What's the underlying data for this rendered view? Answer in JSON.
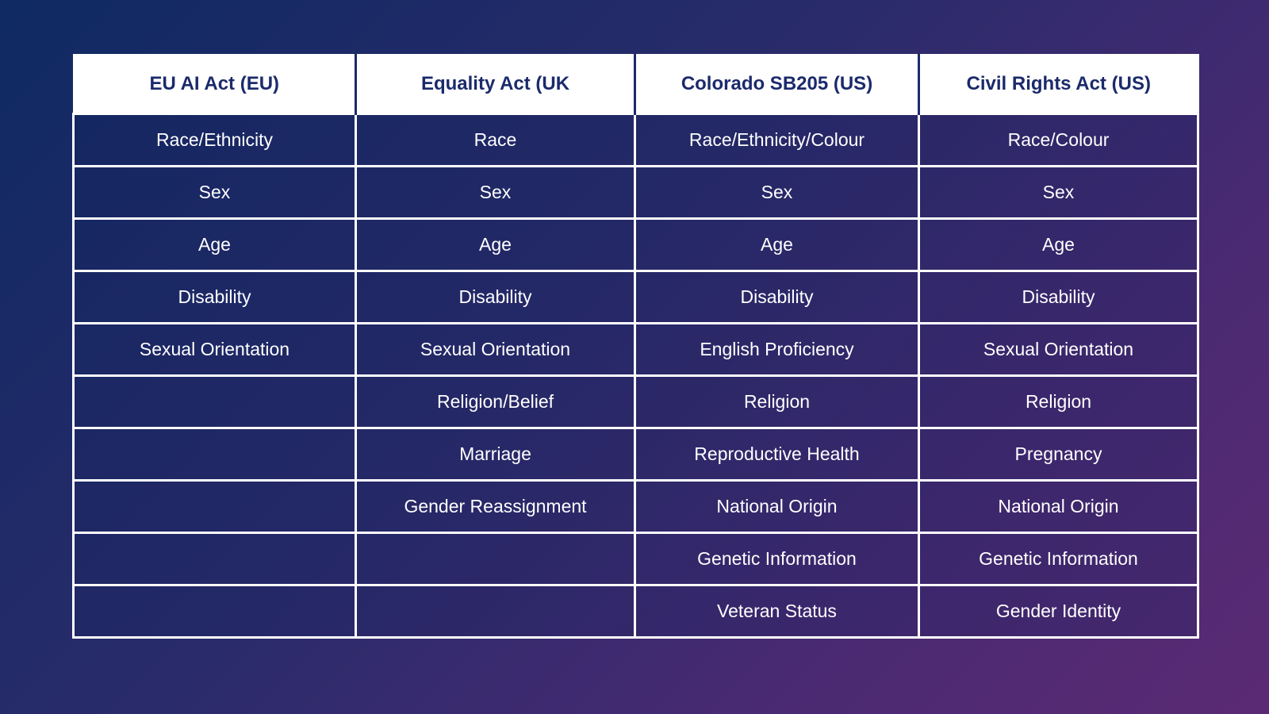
{
  "table": {
    "headers": [
      "EU AI Act (EU)",
      "Equality Act (UK",
      "Colorado SB205 (US)",
      "Civil Rights Act (US)"
    ],
    "rows": [
      [
        "Race/Ethnicity",
        "Race",
        "Race/Ethnicity/Colour",
        "Race/Colour"
      ],
      [
        "Sex",
        "Sex",
        "Sex",
        "Sex"
      ],
      [
        "Age",
        "Age",
        "Age",
        "Age"
      ],
      [
        "Disability",
        "Disability",
        "Disability",
        "Disability"
      ],
      [
        "Sexual Orientation",
        "Sexual Orientation",
        "English Proficiency",
        "Sexual Orientation"
      ],
      [
        "",
        "Religion/Belief",
        "Religion",
        "Religion"
      ],
      [
        "",
        "Marriage",
        "Reproductive Health",
        "Pregnancy"
      ],
      [
        "",
        "Gender Reassignment",
        "National Origin",
        "National Origin"
      ],
      [
        "",
        "",
        "Genetic Information",
        "Genetic Information"
      ],
      [
        "",
        "",
        "Veteran Status",
        "Gender Identity"
      ]
    ]
  },
  "colors": {
    "header_background": "#ffffff",
    "header_text": "#1b2a6b",
    "cell_text": "#ffffff",
    "gradient_start": "#0f2a63",
    "gradient_end": "#5b2a74"
  }
}
